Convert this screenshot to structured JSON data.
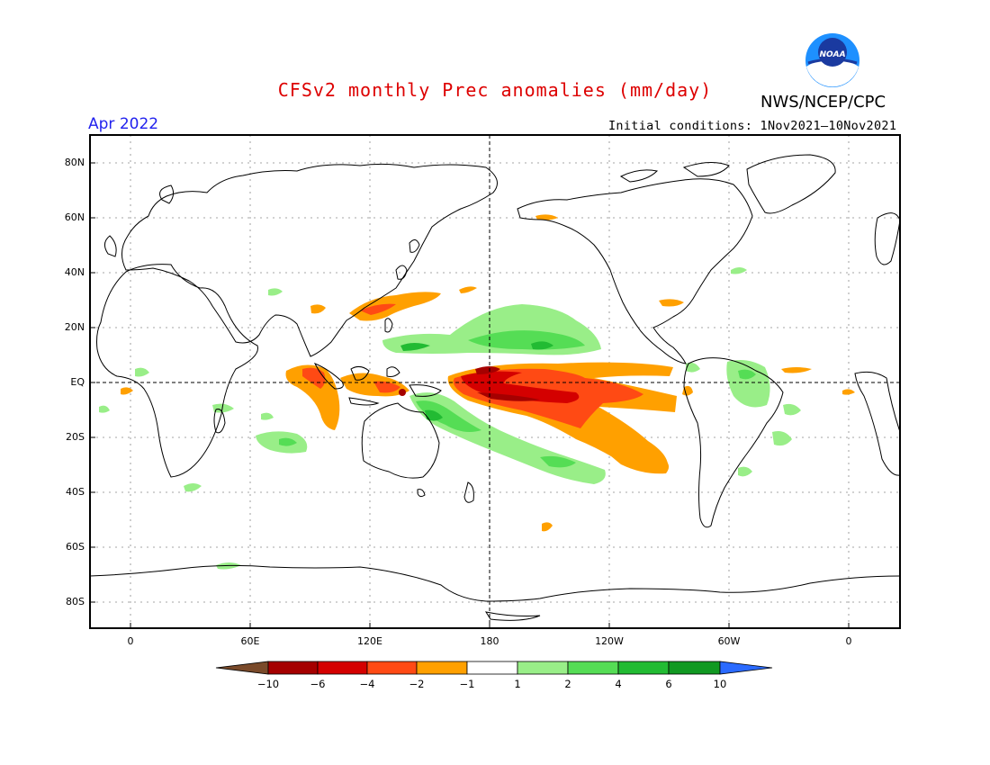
{
  "header": {
    "title": "CFSv2 monthly Prec anomalies (mm/day)",
    "organization": "NWS/NCEP/CPC",
    "logo_text": "NOAA",
    "valid_month": "Apr 2022",
    "initial_conditions": "Initial conditions: 1Nov2021—10Nov2021"
  },
  "axes": {
    "lat_labels": [
      "80N",
      "60N",
      "40N",
      "20N",
      "EQ",
      "20S",
      "40S",
      "60S",
      "80S"
    ],
    "lon_labels": [
      "0",
      "60E",
      "120E",
      "180",
      "120W",
      "60W",
      "0"
    ]
  },
  "colorbar": {
    "labels": [
      "−10",
      "−6",
      "−4",
      "−2",
      "−1",
      "1",
      "2",
      "4",
      "6",
      "10"
    ],
    "colors": {
      "below_min": "#7a4a2a",
      "lt_m6": "#a50000",
      "m6_m4": "#d40000",
      "m4_m2": "#ff4a14",
      "m2_m1": "#ffa000",
      "neutral": "#ffffff",
      "p1_p2": "#99ee88",
      "p2_p4": "#55dd55",
      "p4_p6": "#22bb33",
      "p6_p10": "#119922",
      "above_max": "#2a6aff"
    }
  },
  "colors": {
    "title": "#dd0000",
    "month": "#2222ee",
    "text": "#000000"
  }
}
